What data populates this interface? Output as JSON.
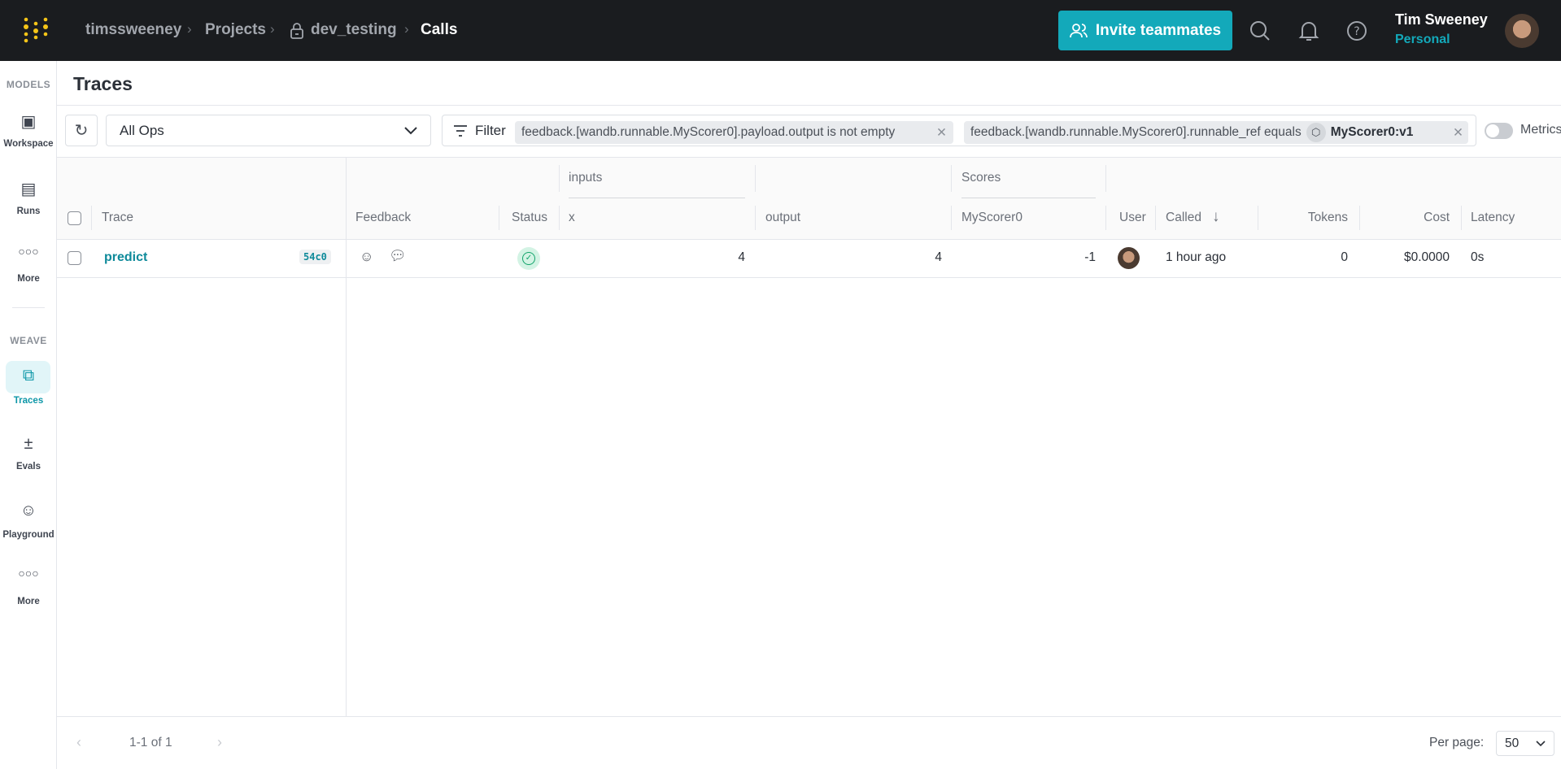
{
  "topbar": {
    "breadcrumbs": [
      "timssweeney",
      "Projects",
      "dev_testing",
      "Calls"
    ],
    "invite_label": "Invite teammates",
    "user_name": "Tim Sweeney",
    "user_plan": "Personal",
    "accent": "#13a9ba"
  },
  "sidebar": {
    "models_label": "MODELS",
    "weave_label": "WEAVE",
    "items": [
      {
        "label": "Workspace",
        "icon": "workspace-icon"
      },
      {
        "label": "Runs",
        "icon": "table-icon"
      },
      {
        "label": "More",
        "icon": "more-icon"
      },
      {
        "label": "Traces",
        "icon": "traces-icon",
        "active": true
      },
      {
        "label": "Evals",
        "icon": "plus-minus-icon"
      },
      {
        "label": "Playground",
        "icon": "robot-icon"
      },
      {
        "label": "More",
        "icon": "more-icon"
      }
    ]
  },
  "page": {
    "title": "Traces"
  },
  "toolbar": {
    "op_select": "All Ops",
    "filter_label": "Filter",
    "filters": [
      {
        "text": "feedback.[wandb.runnable.MyScorer0].payload.output is not empty"
      },
      {
        "text": "feedback.[wandb.runnable.MyScorer0].runnable_ref equals",
        "value": "MyScorer0:v1"
      }
    ],
    "metrics_label": "Metrics",
    "metrics_on": false
  },
  "table": {
    "groups": {
      "inputs": "inputs",
      "scores": "Scores"
    },
    "headers": {
      "trace": "Trace",
      "feedback": "Feedback",
      "status": "Status",
      "x": "x",
      "output": "output",
      "scorer": "MyScorer0",
      "user": "User",
      "called": "Called",
      "tokens": "Tokens",
      "cost": "Cost",
      "latency": "Latency"
    },
    "rows": [
      {
        "trace": "predict",
        "id": "54c0",
        "status": "success",
        "x": "4",
        "output": "4",
        "scorer": "-1",
        "called": "1 hour ago",
        "tokens": "0",
        "cost": "$0.0000",
        "latency": "0s"
      }
    ]
  },
  "footer": {
    "pagination": "1-1 of 1",
    "per_page_label": "Per page:",
    "per_page": "50"
  }
}
